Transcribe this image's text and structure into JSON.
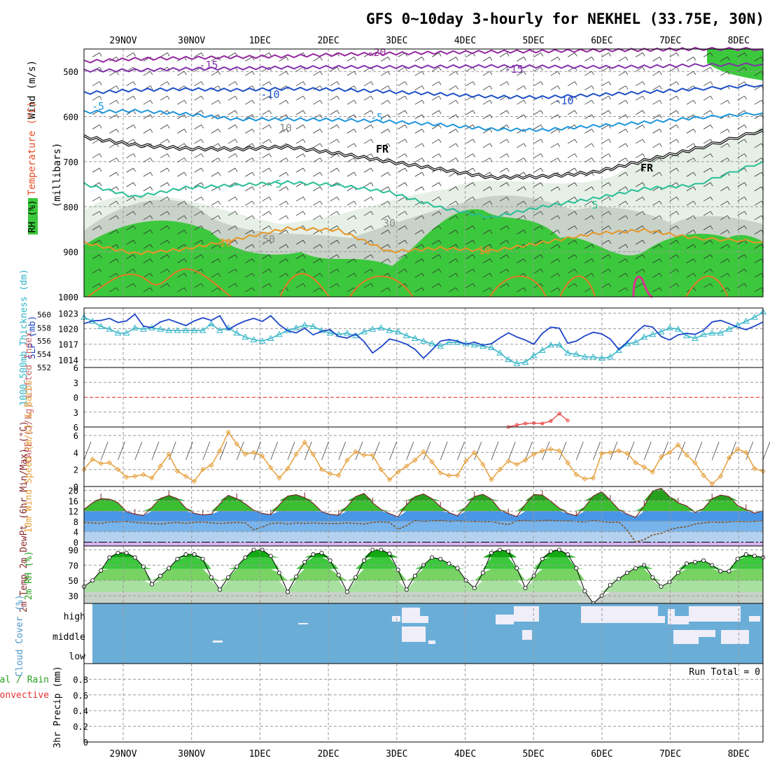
{
  "title": "GFS 0~10day 3-hourly for NEKHEL (33.75E, 30N)",
  "dates": [
    "29NOV",
    "30NOV",
    "1DEC",
    "2DEC",
    "3DEC",
    "4DEC",
    "5DEC",
    "6DEC",
    "7DEC",
    "8DEC"
  ],
  "colors": {
    "rh_green": "#3cc83c",
    "rh_grey": "#c8d2c8",
    "slp": "#1e46c8",
    "thickness": "#32b4c8",
    "lifted": "#e63232",
    "cape": "#b478c8",
    "wind10": "#e6a03c",
    "cloud": "#6aaed8",
    "freezing": "#000000"
  },
  "chart_data": [
    {
      "type": "line",
      "panel": "upper-air",
      "ylabel_parts": [
        "Wind (m/s)",
        "Temperature (°C)",
        "RH (%)",
        "(millibars)"
      ],
      "yticks": [
        500,
        600,
        700,
        800,
        900,
        1000
      ],
      "ylim": [
        450,
        1000
      ],
      "series": [
        {
          "name": "-20",
          "x": [
            0,
            6,
            12,
            18,
            24,
            30,
            36,
            42,
            48,
            54,
            60,
            66,
            72,
            80
          ],
          "values": [
            478,
            472,
            470,
            468,
            466,
            462,
            460,
            458,
            456,
            455,
            453,
            452,
            450,
            450
          ]
        },
        {
          "name": "-15",
          "x": [
            0,
            6,
            12,
            18,
            24,
            30,
            36,
            42,
            48,
            54,
            60,
            66,
            72,
            80
          ],
          "values": [
            498,
            497,
            494,
            493,
            491,
            490,
            490,
            489,
            488,
            489,
            490,
            489,
            486,
            484
          ]
        },
        {
          "name": "-10",
          "x": [
            0,
            6,
            12,
            18,
            24,
            30,
            36,
            42,
            48,
            54,
            60,
            66,
            72,
            80
          ],
          "values": [
            548,
            541,
            539,
            541,
            538,
            540,
            545,
            550,
            556,
            557,
            552,
            546,
            539,
            530
          ]
        },
        {
          "name": "-5",
          "x": [
            0,
            6,
            12,
            18,
            24,
            30,
            36,
            42,
            48,
            54,
            60,
            66,
            72,
            80
          ],
          "values": [
            590,
            587,
            594,
            606,
            606,
            607,
            611,
            618,
            628,
            630,
            621,
            613,
            603,
            592
          ]
        },
        {
          "name": "FR",
          "x": [
            0,
            6,
            12,
            18,
            24,
            30,
            36,
            42,
            48,
            54,
            60,
            66,
            72,
            80
          ],
          "values": [
            645,
            663,
            671,
            672,
            667,
            682,
            700,
            717,
            735,
            733,
            724,
            698,
            672,
            630
          ]
        },
        {
          "name": "5",
          "x": [
            0,
            6,
            12,
            18,
            24,
            30,
            36,
            42,
            48,
            54,
            60,
            66,
            72,
            80
          ],
          "values": [
            750,
            778,
            758,
            752,
            746,
            752,
            768,
            802,
            824,
            800,
            782,
            760,
            752,
            700
          ]
        },
        {
          "name": "10",
          "x": [
            0,
            6,
            12,
            18,
            24,
            30,
            36,
            42,
            48,
            54,
            60,
            66,
            72,
            80
          ],
          "values": [
            880,
            904,
            894,
            872,
            848,
            852,
            900,
            892,
            898,
            880,
            860,
            852,
            870,
            878
          ]
        }
      ],
      "labels": [
        "-20",
        "-15",
        "-10",
        "-5",
        "FR",
        "5",
        "10",
        "30",
        "50",
        "10",
        "-15",
        "-10",
        "-5",
        "FR",
        "5",
        "10"
      ]
    },
    {
      "type": "line",
      "panel": "slp-thickness",
      "ylabel": "SLP (mb)",
      "ylabel2": "1000-500mb Thickness (dm)",
      "yticks_right": [
        1014,
        1017,
        1020,
        1023
      ],
      "yticks_left": [
        552,
        554,
        556,
        558,
        560
      ],
      "series": [
        {
          "name": "SLP (mb)",
          "values": [
            1021.0,
            1021.5,
            1021.6,
            1022.0,
            1021.2,
            1021.5,
            1022.8,
            1020.5,
            1020.2,
            1021.3,
            1021.8,
            1021.2,
            1020.6,
            1021.5,
            1022.1,
            1021.6,
            1022.5,
            1019.8,
            1020.8,
            1021.5,
            1022.0,
            1021.4,
            1022.5,
            1020.8,
            1019.6,
            1019.2,
            1020.1,
            1018.8,
            1019.5,
            1019.8,
            1018.5,
            1018.2,
            1019.0,
            1017.5,
            1015.3,
            1016.5,
            1018.0,
            1017.6,
            1017.0,
            1016.0,
            1014.3,
            1015.9,
            1017.6,
            1017.9,
            1017.6,
            1017.0,
            1017.4,
            1016.8,
            1017.1,
            1018.2,
            1019.2,
            1018.4,
            1017.8,
            1017.0,
            1019.1,
            1020.3,
            1020.1,
            1017.2,
            1017.6,
            1018.6,
            1019.3,
            1019.0,
            1018.0,
            1016.0,
            1017.4,
            1019.2,
            1020.6,
            1020.3,
            1018.5,
            1017.8,
            1018.8,
            1019.1,
            1018.9,
            1019.7,
            1021.3,
            1021.6,
            1021.0,
            1020.3,
            1019.8,
            1020.5,
            1021.3
          ]
        },
        {
          "name": "Thickness (dm)",
          "values": [
            559.6,
            559.0,
            558.2,
            557.8,
            557.2,
            557.2,
            558.0,
            557.8,
            558.0,
            557.8,
            557.6,
            557.6,
            557.6,
            557.6,
            557.6,
            558.6,
            557.6,
            558.0,
            557.2,
            556.6,
            556.2,
            556.0,
            556.4,
            557.0,
            557.6,
            558.0,
            558.4,
            558.2,
            557.6,
            557.2,
            557.0,
            557.2,
            556.8,
            557.4,
            557.8,
            558.0,
            557.6,
            557.4,
            556.8,
            556.4,
            556.0,
            555.6,
            555.2,
            555.8,
            555.8,
            555.6,
            555.4,
            555.2,
            555.0,
            554.2,
            553.2,
            552.6,
            552.8,
            553.8,
            554.6,
            555.4,
            555.4,
            554.2,
            554.0,
            553.6,
            553.6,
            553.4,
            553.6,
            554.6,
            555.6,
            555.8,
            556.6,
            557.0,
            557.4,
            558.0,
            557.8,
            556.8,
            556.4,
            557.0,
            557.2,
            557.2,
            557.8,
            558.4,
            559.0,
            559.6,
            560.4
          ]
        }
      ]
    },
    {
      "type": "line",
      "panel": "cape-lifted",
      "ylabel": "CAPE (J/kg) Lifted Index",
      "yticks": [
        -6,
        -3,
        0,
        3,
        6
      ],
      "series": [
        {
          "name": "Lifted Index",
          "x": [
            50,
            51,
            52,
            53,
            54,
            55,
            56,
            57
          ],
          "values": [
            6,
            5.6,
            5.3,
            5.2,
            5.3,
            4.8,
            3.3,
            4.7
          ]
        }
      ]
    },
    {
      "type": "line",
      "panel": "wind10",
      "ylabel": "10m Wind Speed (m/s) & Barbs",
      "yticks": [
        0,
        2,
        4,
        6
      ],
      "series": [
        {
          "name": "10m Wind Speed (m/s)",
          "values": [
            2.0,
            3.2,
            2.7,
            2.8,
            2.0,
            1.1,
            1.2,
            1.4,
            1.0,
            2.4,
            3.8,
            1.8,
            1.2,
            0.6,
            2.0,
            2.5,
            4.2,
            6.4,
            5.0,
            3.8,
            4.0,
            3.6,
            2.2,
            1.0,
            2.1,
            3.8,
            5.2,
            3.8,
            2.0,
            1.5,
            1.3,
            3.1,
            4.1,
            3.7,
            3.7,
            2.0,
            0.8,
            1.7,
            2.4,
            3.1,
            4.1,
            2.9,
            1.6,
            1.3,
            1.3,
            3.0,
            4.0,
            2.6,
            0.8,
            2.0,
            3.0,
            2.6,
            3.1,
            3.8,
            4.2,
            4.4,
            4.2,
            2.8,
            1.4,
            0.9,
            1.0,
            3.9,
            4.0,
            4.2,
            3.9,
            2.8,
            2.3,
            1.7,
            3.5,
            4.0,
            4.9,
            3.7,
            2.8,
            1.3,
            0.3,
            1.2,
            3.4,
            4.4,
            4.0,
            2.1,
            1.8
          ]
        }
      ]
    },
    {
      "type": "area",
      "panel": "temp2m",
      "ylabel": "2m Temp 2m DewPt (6hr Min/Max) (°C)",
      "yticks": [
        0,
        4,
        8,
        12,
        16,
        20
      ],
      "series": [
        {
          "name": "2m Temp",
          "values": [
            12.6,
            15.2,
            16.8,
            16.6,
            15.2,
            11.8,
            10.8,
            10.3,
            13.4,
            16.9,
            18.0,
            16.8,
            13.1,
            11.1,
            10.5,
            10.8,
            14.8,
            18.1,
            16.8,
            14.8,
            12.3,
            11.1,
            10.6,
            14.4,
            17.8,
            18.3,
            17.2,
            15.0,
            11.8,
            10.7,
            10.4,
            13.8,
            17.6,
            18.8,
            15.2,
            12.6,
            11.0,
            9.8,
            14.4,
            17.6,
            18.6,
            16.8,
            13.6,
            11.4,
            10.2,
            13.6,
            17.6,
            18.5,
            16.6,
            12.5,
            11.0,
            9.9,
            14.6,
            18.4,
            18.2,
            15.8,
            13.1,
            11.1,
            10.2,
            13.6,
            17.8,
            19.5,
            16.2,
            12.6,
            10.8,
            9.6,
            14.0,
            19.8,
            20.8,
            17.6,
            15.2,
            14.0,
            11.4,
            13.0,
            16.8,
            18.2,
            17.6,
            14.2,
            12.6,
            11.2,
            12.1
          ]
        },
        {
          "name": "2m DewPt",
          "values": [
            7.6,
            7.4,
            7.2,
            7.8,
            7.8,
            8.0,
            7.6,
            7.4,
            7.2,
            7.0,
            7.4,
            7.6,
            7.2,
            7.6,
            7.8,
            7.4,
            7.2,
            7.4,
            7.6,
            7.4,
            4.8,
            5.8,
            7.2,
            7.4,
            7.0,
            7.4,
            7.2,
            7.4,
            7.2,
            7.2,
            7.2,
            7.4,
            7.2,
            7.0,
            7.6,
            7.8,
            7.6,
            5.0,
            6.4,
            8.4,
            8.0,
            8.2,
            8.4,
            8.0,
            8.2,
            8.0,
            8.0,
            7.8,
            8.0,
            7.2,
            6.8,
            8.2,
            8.4,
            8.0,
            8.4,
            8.4,
            8.2,
            8.2,
            8.0,
            7.8,
            8.4,
            8.0,
            7.6,
            7.8,
            4.6,
            0.0,
            1.0,
            2.8,
            3.4,
            4.8,
            5.6,
            6.0,
            7.0,
            7.4,
            7.8,
            7.6,
            7.8,
            8.0,
            7.8,
            8.0,
            8.2
          ]
        }
      ]
    },
    {
      "type": "area",
      "panel": "rh2m",
      "ylabel": "2m RH (%)",
      "yticks": [
        30,
        50,
        70,
        90
      ],
      "series": [
        {
          "name": "2m RH",
          "values": [
            42,
            50,
            63,
            80,
            86,
            86,
            80,
            68,
            45,
            56,
            66,
            78,
            84,
            84,
            78,
            54,
            38,
            54,
            68,
            80,
            90,
            90,
            82,
            60,
            35,
            55,
            74,
            84,
            86,
            76,
            57,
            35,
            54,
            76,
            90,
            90,
            85,
            64,
            38,
            56,
            70,
            80,
            78,
            72,
            66,
            50,
            40,
            60,
            86,
            90,
            88,
            66,
            40,
            56,
            78,
            88,
            90,
            84,
            66,
            36,
            20,
            30,
            44,
            52,
            60,
            66,
            70,
            54,
            42,
            48,
            60,
            72,
            74,
            76,
            70,
            62,
            62,
            78,
            84,
            82,
            80
          ]
        }
      ]
    },
    {
      "type": "heatmap",
      "panel": "cloud",
      "ylabel": "Cloud Cover (%)",
      "yticks": [
        "high",
        "middle",
        "low"
      ]
    },
    {
      "type": "bar",
      "panel": "precip",
      "ylabel_parts": [
        "3hr Precip (mm)",
        "Total / Rain",
        "Convective"
      ],
      "yticks": [
        0,
        0.2,
        0.4,
        0.6,
        0.8
      ],
      "ylim": [
        0,
        1
      ],
      "annotation": "Run Total = 0",
      "values": []
    }
  ]
}
